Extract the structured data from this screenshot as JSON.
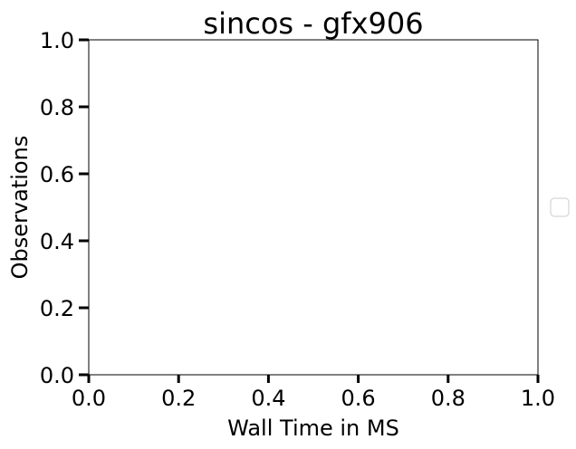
{
  "chart_data": {
    "type": "line",
    "title": "sincos - gfx906",
    "xlabel": "Wall Time in MS",
    "ylabel": "Observations",
    "xlim": [
      0.0,
      1.0
    ],
    "ylim": [
      0.0,
      1.0
    ],
    "x_ticks": [
      "0.0",
      "0.2",
      "0.4",
      "0.6",
      "0.8",
      "1.0"
    ],
    "y_ticks": [
      "0.0",
      "0.2",
      "0.4",
      "0.6",
      "0.8",
      "1.0"
    ],
    "series": [],
    "legend": {
      "placement": "right, outside plot area",
      "entries": []
    },
    "grid": false
  }
}
